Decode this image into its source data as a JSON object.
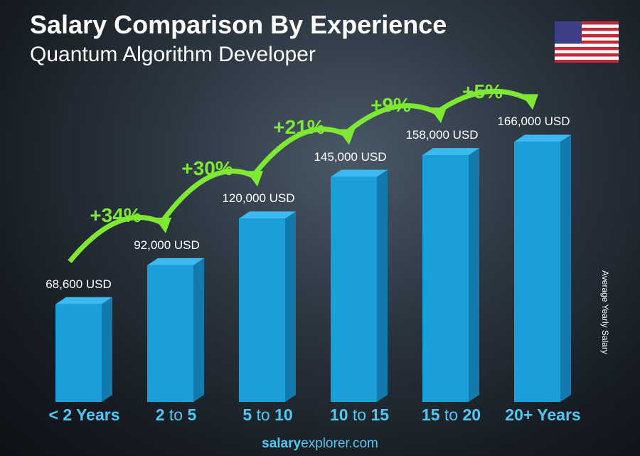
{
  "title": "Salary Comparison By Experience",
  "subtitle": "Quantum Algorithm Developer",
  "flag_icon": "us-flag-icon",
  "colors": {
    "bar_front": "#1a9fdb",
    "bar_side": "#1479ac",
    "bar_top": "#3cbaf0",
    "accent_green": "#7ee832",
    "label_blue": "#4fc8f5"
  },
  "footer": {
    "bold": "salary",
    "rest": "explorer.com"
  },
  "chart_data": {
    "type": "bar",
    "title": "Salary Comparison By Experience",
    "subtitle": "Quantum Algorithm Developer",
    "ylabel": "Average Yearly Salary",
    "categories": [
      {
        "a": "< 2 Years",
        "b": "",
        "c": ""
      },
      {
        "a": "2",
        "b": " to ",
        "c": "5"
      },
      {
        "a": "5",
        "b": " to ",
        "c": "10"
      },
      {
        "a": "10",
        "b": " to ",
        "c": "15"
      },
      {
        "a": "15",
        "b": " to ",
        "c": "20"
      },
      {
        "a": "20+ Years",
        "b": "",
        "c": ""
      }
    ],
    "values": [
      68600,
      92000,
      120000,
      145000,
      158000,
      166000
    ],
    "value_labels": [
      "68,600 USD",
      "92,000 USD",
      "120,000 USD",
      "145,000 USD",
      "158,000 USD",
      "166,000 USD"
    ],
    "increases": [
      "+34%",
      "+30%",
      "+21%",
      "+9%",
      "+5%"
    ],
    "ylim": [
      10000,
      170000
    ],
    "grid": false
  }
}
